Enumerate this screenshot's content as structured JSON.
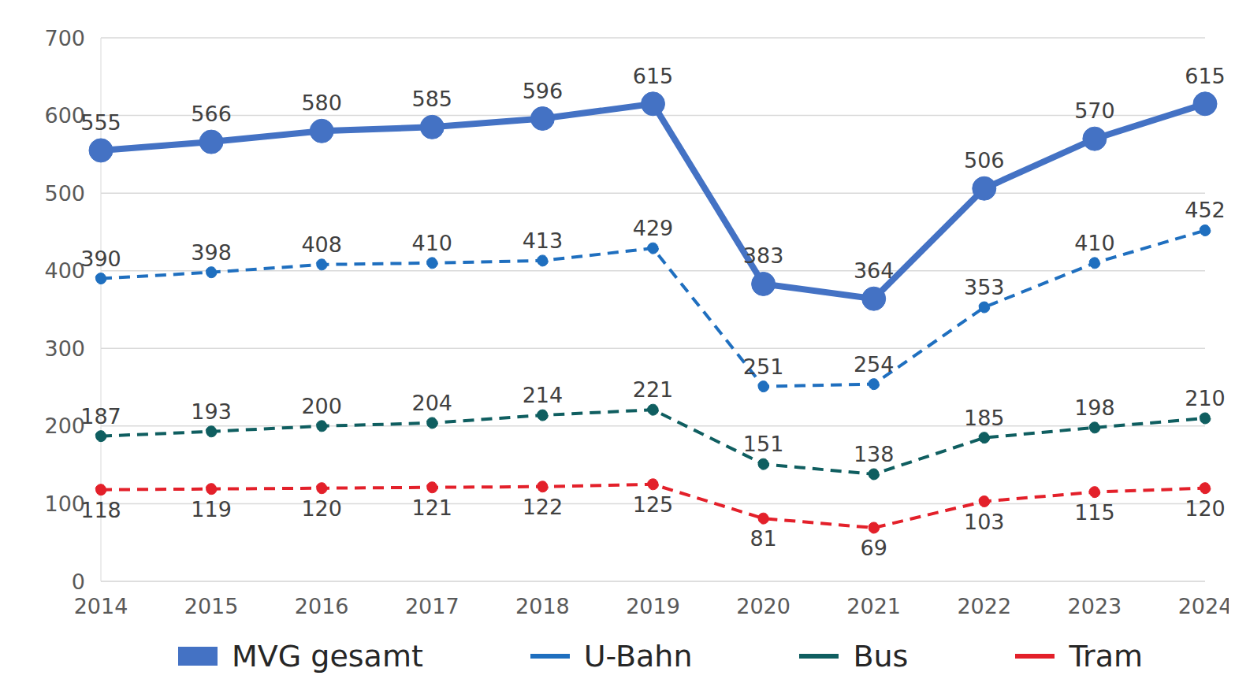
{
  "chart_data": {
    "type": "line",
    "categories": [
      "2014",
      "2015",
      "2016",
      "2017",
      "2018",
      "2019",
      "2020",
      "2021",
      "2022",
      "2023",
      "2024"
    ],
    "series": [
      {
        "name": "MVG gesamt",
        "color": "#4472c4",
        "line_style": "solid",
        "marker": "circle",
        "values": [
          555,
          566,
          580,
          585,
          596,
          615,
          383,
          364,
          506,
          570,
          615
        ]
      },
      {
        "name": "U-Bahn",
        "color": "#1f6fbf",
        "line_style": "dashed",
        "marker": "circle",
        "values": [
          390,
          398,
          408,
          410,
          413,
          429,
          251,
          254,
          353,
          410,
          452
        ]
      },
      {
        "name": "Bus",
        "color": "#0f5e60",
        "line_style": "dashed",
        "marker": "circle",
        "values": [
          187,
          193,
          200,
          204,
          214,
          221,
          151,
          138,
          185,
          198,
          210
        ]
      },
      {
        "name": "Tram",
        "color": "#e3202a",
        "line_style": "dashed",
        "marker": "circle",
        "values": [
          118,
          119,
          120,
          121,
          122,
          125,
          81,
          69,
          103,
          115,
          120
        ]
      }
    ],
    "ylim": [
      0,
      700
    ],
    "yticks": [
      0,
      100,
      200,
      300,
      400,
      500,
      600,
      700
    ],
    "grid": true,
    "legend": "bottom",
    "data_labels": true
  }
}
